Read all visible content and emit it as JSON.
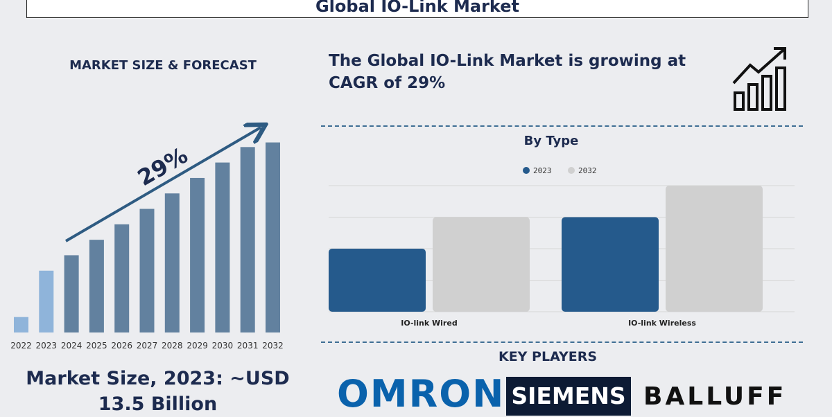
{
  "header": {
    "title": "Global IO-Link Market"
  },
  "left_panel": {
    "heading": "MARKET SIZE & FORECAST",
    "cagr_label": "29%",
    "market_size_line1": "Market Size, 2023: ~USD",
    "market_size_line2": "13.5 Billion"
  },
  "right_panel": {
    "growth_line1": "The Global IO-Link Market is growing at",
    "growth_line2": "CAGR of 29%",
    "growth_icon": "bar-chart-growth-arrow-icon",
    "type_title": "By Type",
    "players_title": "KEY PLAYERS",
    "players": [
      "OMRON",
      "SIEMENS",
      "BALLUFF"
    ]
  },
  "colors": {
    "dark_blue": "#255a8c",
    "light_gray": "#d0d0d0",
    "slate_bar": "#62819f",
    "light_blue_bar": "#8fb4da",
    "navy_text": "#1d2b4f"
  },
  "chart_data": [
    {
      "type": "bar",
      "title": "MARKET SIZE & FORECAST",
      "categories": [
        "2022",
        "2023",
        "2024",
        "2025",
        "2026",
        "2027",
        "2028",
        "2029",
        "2030",
        "2031",
        "2032"
      ],
      "values": [
        1,
        4,
        5,
        6,
        7,
        8,
        9,
        10,
        11,
        12,
        12.3
      ],
      "highlighted": [
        "2022",
        "2023"
      ],
      "annotation": "29%",
      "ylim": [
        0,
        13
      ],
      "grid": false
    },
    {
      "type": "bar",
      "title": "By Type",
      "categories": [
        "IO-link Wired",
        "IO-link Wireless"
      ],
      "series": [
        {
          "name": "2023",
          "values": [
            2,
            3
          ]
        },
        {
          "name": "2032",
          "values": [
            3,
            4
          ]
        }
      ],
      "ylim": [
        0,
        4
      ],
      "legend": "top-center",
      "grid": true
    }
  ]
}
